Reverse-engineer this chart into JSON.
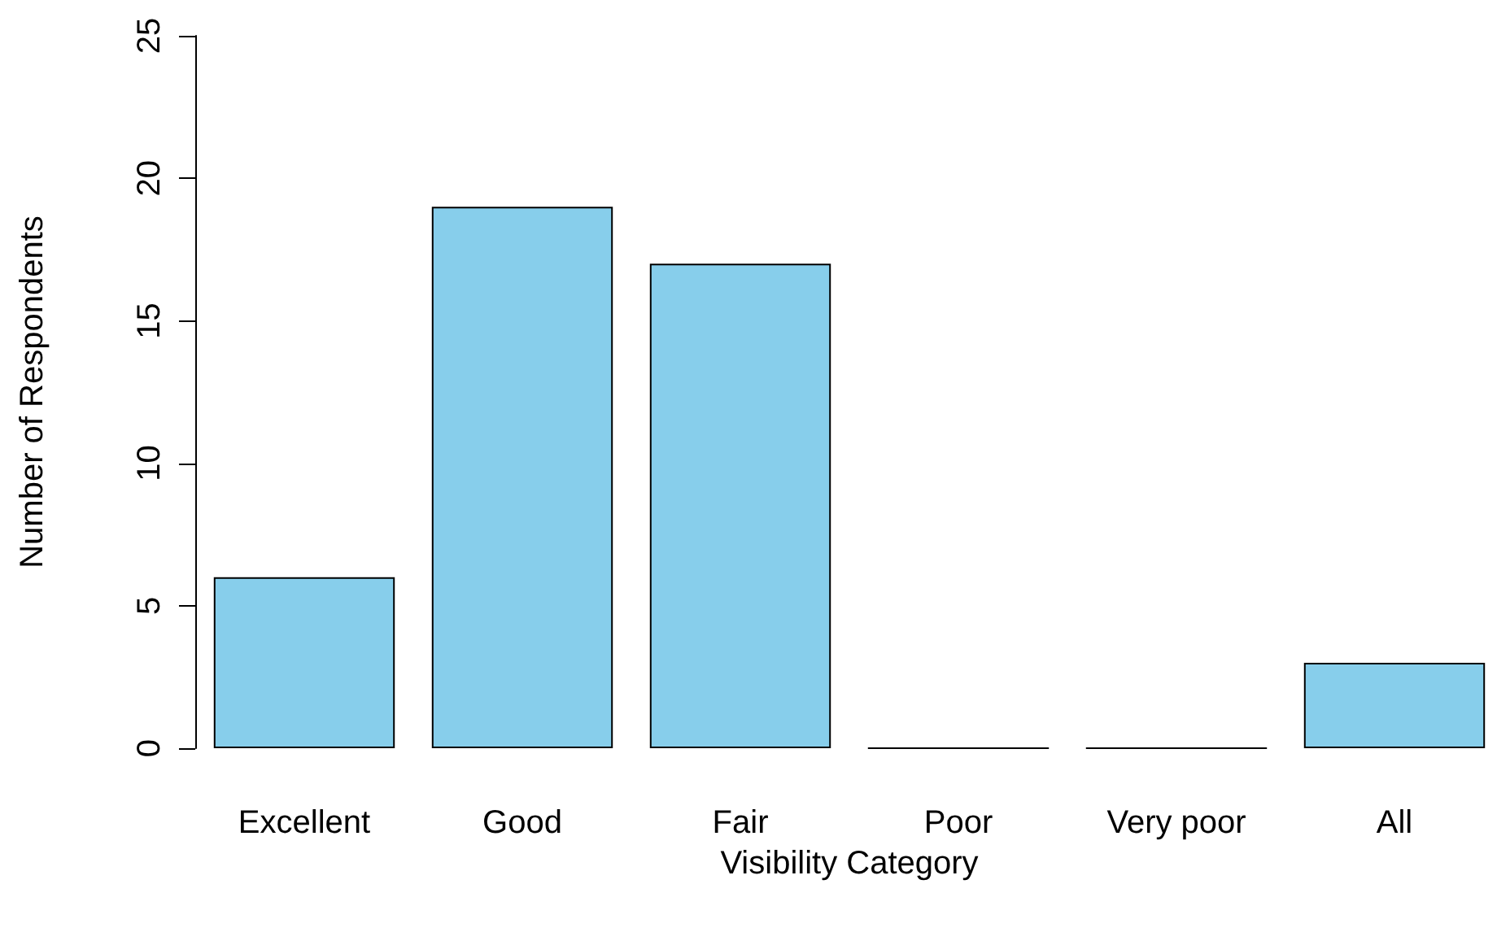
{
  "chart_data": {
    "type": "bar",
    "xlabel": "Visibility Category",
    "ylabel": "Number of Respondents",
    "categories": [
      "Excellent",
      "Good",
      "Fair",
      "Poor",
      "Very poor",
      "All"
    ],
    "values": [
      6,
      19,
      17,
      0,
      0,
      3
    ],
    "color": "#87ceeb",
    "ylim": [
      0,
      25
    ],
    "yticks": [
      0,
      5,
      10,
      15,
      20,
      25
    ]
  }
}
